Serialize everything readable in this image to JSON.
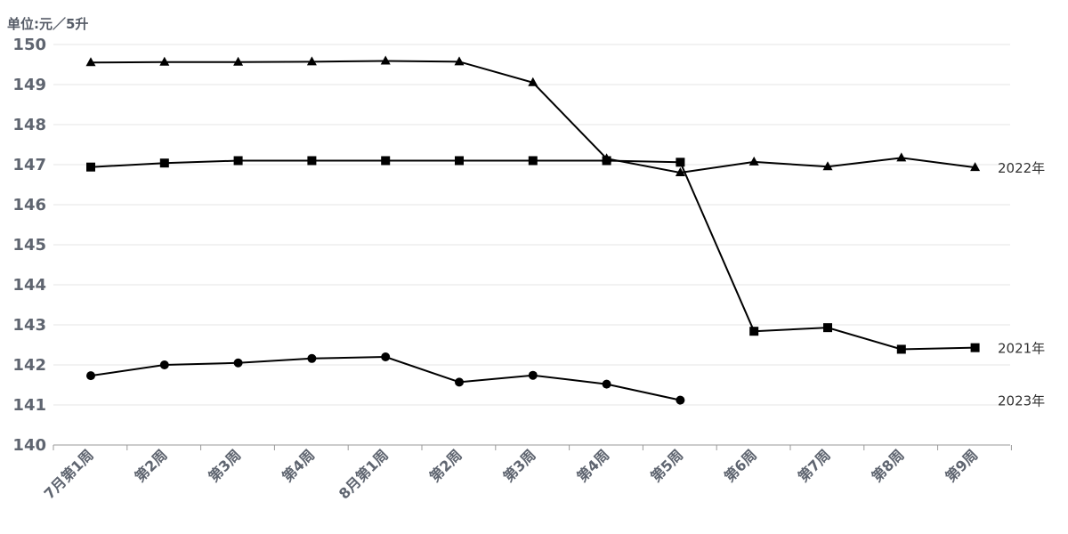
{
  "chart_data": {
    "type": "line",
    "unit_label": "单位:元／5升",
    "categories": [
      "7月第1周",
      "第2周",
      "第3周",
      "第4周",
      "8月第1周",
      "第2周",
      "第3周",
      "第4周",
      "第5周",
      "第6周",
      "第7周",
      "第8周",
      "第9周"
    ],
    "ylim": [
      140,
      150
    ],
    "yticks": [
      140,
      141,
      142,
      143,
      144,
      145,
      146,
      147,
      148,
      149,
      150
    ],
    "grid": true,
    "series": [
      {
        "name": "2022年",
        "marker": "triangle",
        "values": [
          149.55,
          149.56,
          149.56,
          149.57,
          149.59,
          149.57,
          149.05,
          147.15,
          146.8,
          147.07,
          146.95,
          147.17,
          146.93
        ]
      },
      {
        "name": "2021年",
        "marker": "square",
        "values": [
          146.94,
          147.04,
          147.1,
          147.1,
          147.1,
          147.1,
          147.1,
          147.1,
          147.06,
          142.84,
          142.93,
          142.39,
          142.43
        ]
      },
      {
        "name": "2023年",
        "marker": "circle",
        "values": [
          141.73,
          142.0,
          142.05,
          142.16,
          142.2,
          141.57,
          141.74,
          141.52,
          141.12,
          null,
          null,
          null,
          null
        ]
      }
    ]
  }
}
